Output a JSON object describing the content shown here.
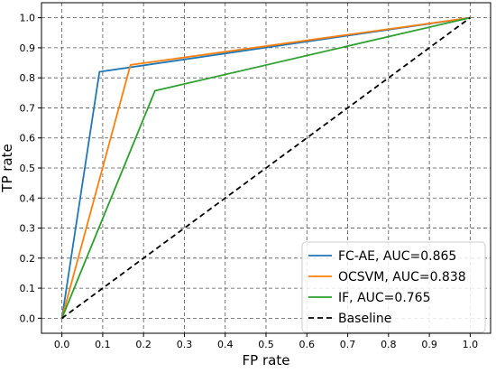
{
  "chart_data": {
    "type": "line",
    "xlabel": "FP rate",
    "ylabel": "TP rate",
    "xlim": [
      -0.05,
      1.05
    ],
    "ylim": [
      -0.05,
      1.05
    ],
    "xticks": [
      "0.0",
      "0.1",
      "0.2",
      "0.3",
      "0.4",
      "0.5",
      "0.6",
      "0.7",
      "0.8",
      "0.9",
      "1.0"
    ],
    "yticks": [
      "0.0",
      "0.1",
      "0.2",
      "0.3",
      "0.4",
      "0.5",
      "0.6",
      "0.7",
      "0.8",
      "0.9",
      "1.0"
    ],
    "grid": true,
    "legend_position": "bottom-right",
    "series": [
      {
        "name": "FC-AE, AUC=0.865",
        "color": "#1f77b4",
        "dash": "solid",
        "x": [
          0.0,
          0.092,
          1.0
        ],
        "y": [
          0.0,
          0.82,
          1.0
        ]
      },
      {
        "name": "OCSVM, AUC=0.838",
        "color": "#ff7f0e",
        "dash": "solid",
        "x": [
          0.0,
          0.168,
          1.0
        ],
        "y": [
          0.0,
          0.843,
          1.0
        ]
      },
      {
        "name": "IF, AUC=0.765",
        "color": "#2ca02c",
        "dash": "solid",
        "x": [
          0.0,
          0.228,
          1.0
        ],
        "y": [
          0.0,
          0.757,
          1.0
        ]
      },
      {
        "name": "Baseline",
        "color": "#000000",
        "dash": "dashed",
        "x": [
          0.0,
          1.0
        ],
        "y": [
          0.0,
          1.0
        ]
      }
    ]
  }
}
